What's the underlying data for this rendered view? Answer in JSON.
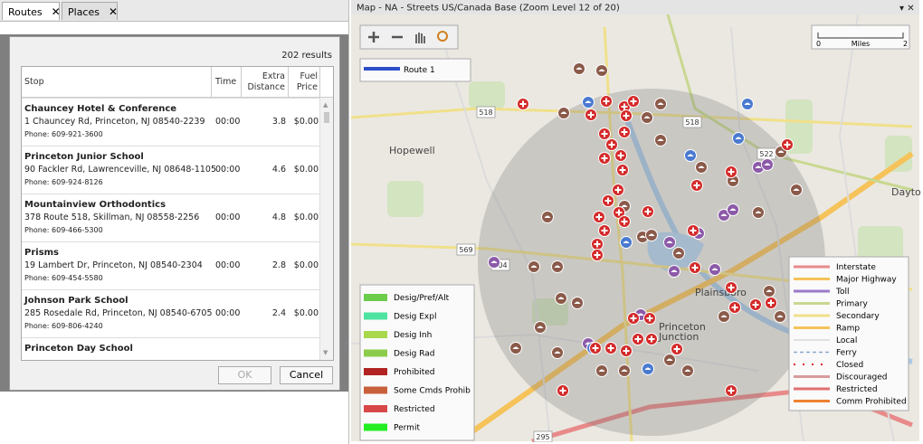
{
  "tabs": [
    "Routes",
    "Places"
  ],
  "dialog": {
    "results": "202 results",
    "columns": [
      "Stop",
      "Time",
      "Extra Distance",
      "Fuel Price"
    ],
    "rows": [
      {
        "name": "Chauncey Hotel & Conference",
        "address": "1 Chauncey Rd, Princeton, NJ 08540-2239",
        "phone": "Phone: 609-921-3600",
        "time": "00:00",
        "distance": "3.8",
        "price": "$0.00"
      },
      {
        "name": "Princeton Junior School",
        "address": "90 Fackler Rd, Lawrenceville, NJ 08648-1105",
        "phone": "Phone: 609-924-8126",
        "time": "00:00",
        "distance": "4.6",
        "price": "$0.00"
      },
      {
        "name": "Mountainview Orthodontics",
        "address": "378 Route 518, Skillman, NJ 08558-2256",
        "phone": "Phone: 609-466-5300",
        "time": "00:00",
        "distance": "4.8",
        "price": "$0.00"
      },
      {
        "name": "Prisms",
        "address": "19 Lambert Dr, Princeton, NJ 08540-2304",
        "phone": "Phone: 609-454-5580",
        "time": "00:00",
        "distance": "2.8",
        "price": "$0.00"
      },
      {
        "name": "Johnson Park School",
        "address": "285 Rosedale Rd, Princeton, NJ 08540-6705",
        "phone": "Phone: 609-806-4240",
        "time": "00:00",
        "distance": "2.4",
        "price": "$0.00"
      },
      {
        "name": "Princeton Day School"
      }
    ],
    "buttons": [
      "OK",
      "Cancel"
    ]
  },
  "map": {
    "title": "Map - NA - Streets US/Canada Base (Zoom Level 12 of 20)",
    "scale": {
      "start": "0",
      "unit": "Miles",
      "end": "2"
    },
    "route_legend": [
      {
        "label": "Route 1",
        "color": "#2f4fc8"
      }
    ],
    "designation_legend": [
      {
        "label": "Desig/Pref/Alt",
        "color": "#6ccc4c"
      },
      {
        "label": "Desig Expl",
        "color": "#4ee3a0"
      },
      {
        "label": "Desig Inh",
        "color": "#a8d84c"
      },
      {
        "label": "Desig Rad",
        "color": "#8ccc4a"
      },
      {
        "label": "Prohibited",
        "color": "#b22222"
      },
      {
        "label": "Some Cmds Prohib",
        "color": "#c8603c"
      },
      {
        "label": "Restricted",
        "color": "#d84848"
      },
      {
        "label": "Permit",
        "color": "#22ee22"
      }
    ],
    "road_legend": [
      {
        "label": "Interstate",
        "color": "#e88a8a"
      },
      {
        "label": "Major Highway",
        "color": "#f5c35a"
      },
      {
        "label": "Toll",
        "color": "#9a7ac8"
      },
      {
        "label": "Primary",
        "color": "#c8d890"
      },
      {
        "label": "Secondary",
        "color": "#f0e08a"
      },
      {
        "label": "Ramp",
        "color": "#f5c35a"
      },
      {
        "label": "Local",
        "color": "#d8d8d8"
      },
      {
        "label": "Ferry",
        "color": "#8aaacc"
      },
      {
        "label": "Closed",
        "color": "#e02020"
      },
      {
        "label": "Discouraged",
        "color": "#d99a9a"
      },
      {
        "label": "Restricted",
        "color": "#e07070"
      },
      {
        "label": "Comm Prohibited",
        "color": "#f08030"
      }
    ],
    "place_labels": [
      "Hopewell",
      "Dayton",
      "Plainsboro",
      "Princeton",
      "Junction"
    ],
    "shields": [
      "518",
      "569",
      "604",
      "518",
      "522",
      "295"
    ]
  }
}
